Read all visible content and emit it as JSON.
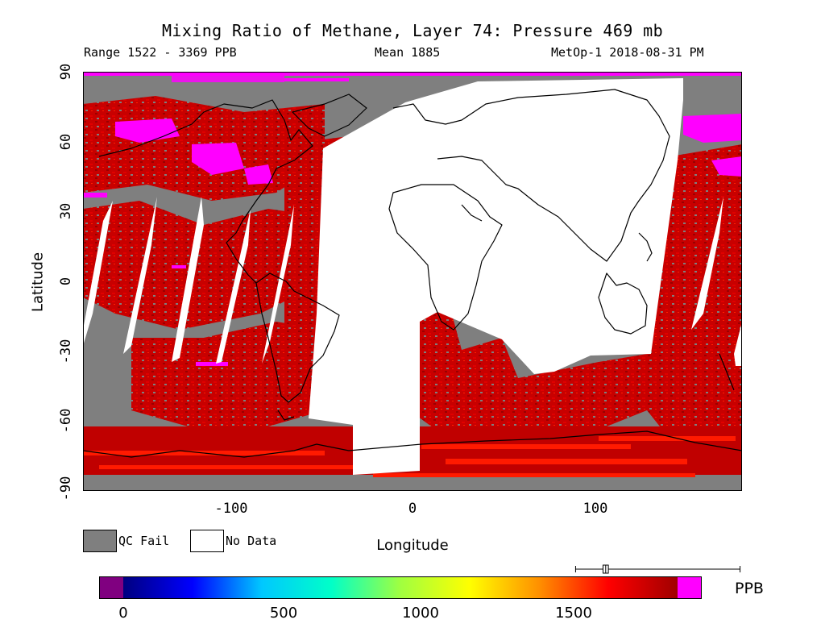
{
  "title": "Mixing Ratio of Methane, Layer 74: Pressure 469 mb",
  "subtitle": {
    "range": "Range 1522 - 3369 PPB",
    "mean": "Mean 1885",
    "source": "MetOp-1 2018-08-31 PM"
  },
  "axes": {
    "x_label": "Longitude",
    "y_label": "Latitude",
    "x_range": [
      -180,
      180
    ],
    "y_range": [
      -90,
      90
    ],
    "x_ticks": [
      -100,
      0,
      100
    ],
    "y_ticks": [
      90,
      60,
      30,
      0,
      -30,
      -60,
      -90
    ]
  },
  "legend": {
    "qc_fail": {
      "label": "QC Fail",
      "color": "#7f7f7f"
    },
    "no_data": {
      "label": "No Data",
      "color": "#ffffff"
    }
  },
  "colorbar": {
    "unit": "PPB",
    "ticks": [
      0,
      500,
      1000,
      1500
    ],
    "under_color": "#800080",
    "over_color": "#ff00ff",
    "gradient": [
      "#000080",
      "#0000ff",
      "#00c8ff",
      "#00ffc8",
      "#a0ff40",
      "#ffff00",
      "#ff9000",
      "#ff0000",
      "#a00000"
    ]
  },
  "boxplot": {
    "min": 1522,
    "q1": 1830,
    "median": 1860,
    "q3": 1890,
    "max": 3369
  },
  "colors": {
    "qc_fail": "#7f7f7f",
    "field_low": "#c80000",
    "field_mid": "#b00000",
    "field_high": "#ff00ff",
    "field_south": "#ff2000",
    "coast": "#000000"
  }
}
